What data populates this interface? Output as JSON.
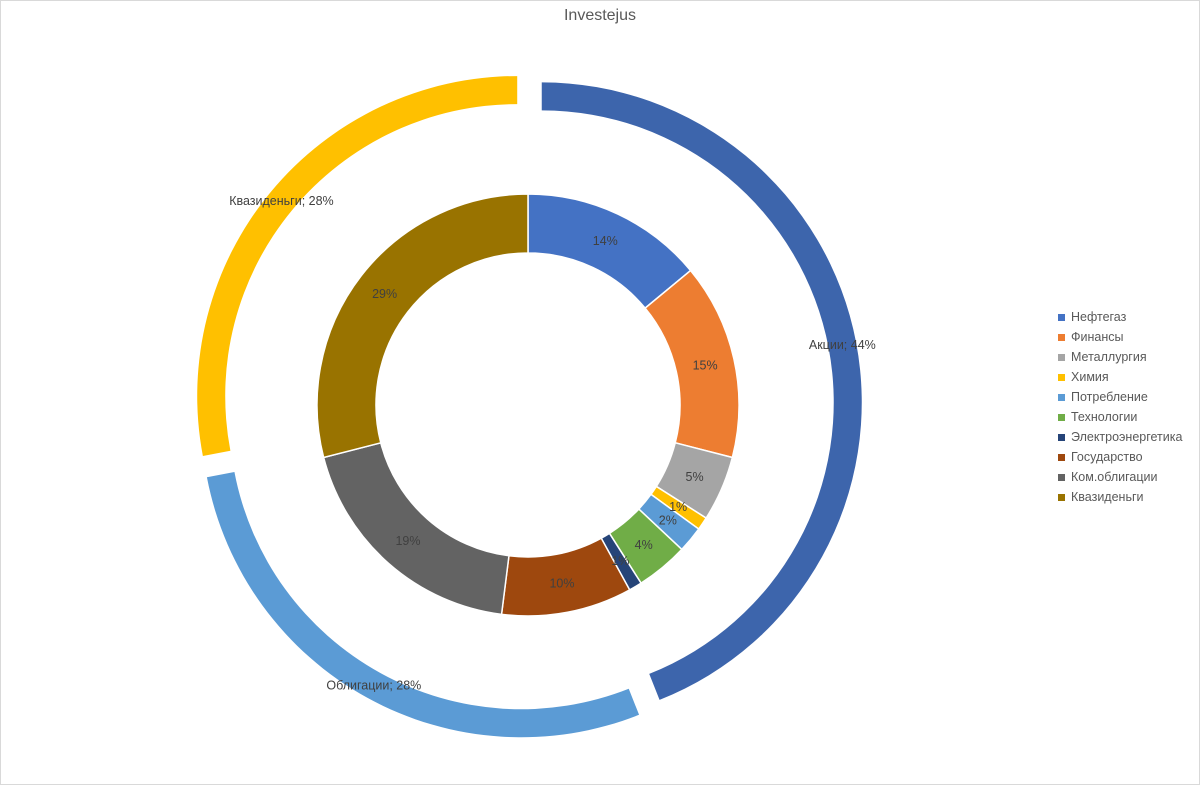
{
  "chart_data": {
    "type": "donut",
    "title": "Investejus",
    "legend_position": "right",
    "rings": [
      {
        "ring": "outer",
        "series": [
          {
            "name": "Акции",
            "value": 44,
            "label": "Акции; 44%",
            "color": "#3d65ac"
          },
          {
            "name": "Облигации",
            "value": 28,
            "label": "Облигации; 28%",
            "color": "#5b9bd5"
          },
          {
            "name": "Квазиденьги",
            "value": 28,
            "label": "Квазиденьги; 28%",
            "color": "#ffc000"
          }
        ]
      },
      {
        "ring": "inner",
        "series": [
          {
            "name": "Нефтегаз",
            "value": 14,
            "label": "14%",
            "color": "#4472c4"
          },
          {
            "name": "Финансы",
            "value": 15,
            "label": "15%",
            "color": "#ed7d31"
          },
          {
            "name": "Металлургия",
            "value": 5,
            "label": "5%",
            "color": "#a5a5a5"
          },
          {
            "name": "Химия",
            "value": 1,
            "label": "1%",
            "color": "#ffc000"
          },
          {
            "name": "Потребление",
            "value": 2,
            "label": "2%",
            "color": "#5b9bd5"
          },
          {
            "name": "Технологии",
            "value": 4,
            "label": "4%",
            "color": "#70ad47"
          },
          {
            "name": "Электроэнергетика",
            "value": 1,
            "label": "1%",
            "color": "#264478"
          },
          {
            "name": "Государство",
            "value": 10,
            "label": "10%",
            "color": "#9e480e"
          },
          {
            "name": "Ком.облигации",
            "value": 19,
            "label": "19%",
            "color": "#636363"
          },
          {
            "name": "Квазиденьги",
            "value": 29,
            "label": "29%",
            "color": "#997300"
          }
        ]
      }
    ],
    "legend": [
      {
        "name": "Нефтегаз",
        "color": "#4472c4"
      },
      {
        "name": "Финансы",
        "color": "#ed7d31"
      },
      {
        "name": "Металлургия",
        "color": "#a5a5a5"
      },
      {
        "name": "Химия",
        "color": "#ffc000"
      },
      {
        "name": "Потребление",
        "color": "#5b9bd5"
      },
      {
        "name": "Технологии",
        "color": "#70ad47"
      },
      {
        "name": "Электроэнергетика",
        "color": "#264478"
      },
      {
        "name": "Государство",
        "color": "#9e480e"
      },
      {
        "name": "Ком.облигации",
        "color": "#636363"
      },
      {
        "name": "Квазиденьги",
        "color": "#997300"
      }
    ]
  }
}
